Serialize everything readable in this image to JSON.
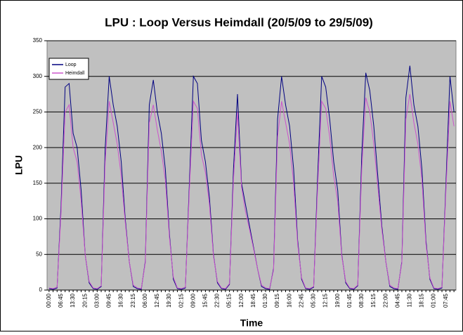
{
  "chart_data": {
    "type": "line",
    "title": "LPU : Loop Versus Heimdall (20/5/09 to 29/5/09)",
    "x_label": "Time",
    "y_label": "LPU",
    "categories": [
      "00:00",
      null,
      null,
      "06:45",
      null,
      null,
      "13:30",
      null,
      null,
      "20:15",
      null,
      null,
      "03:00",
      null,
      null,
      "09:45",
      null,
      null,
      "16:30",
      null,
      null,
      "23:15",
      null,
      null,
      "06:00",
      null,
      null,
      "12:45",
      null,
      null,
      "19:30",
      null,
      null,
      "02:15",
      null,
      null,
      "09:00",
      null,
      null,
      "15:45",
      null,
      null,
      "22:30",
      null,
      null,
      "05:15",
      null,
      null,
      "12:00",
      null,
      null,
      "18:45",
      null,
      null,
      "01:30",
      null,
      null,
      "09:15",
      null,
      null,
      "16:00",
      null,
      null,
      "22:45",
      null,
      null,
      "05:30",
      null,
      null,
      "12:15",
      null,
      null,
      "19:00",
      null,
      null,
      "01:45",
      null,
      null,
      "08:30",
      null,
      null,
      "15:15",
      null,
      null,
      "22:00",
      null,
      null,
      "04:45",
      null,
      null,
      "11:30",
      null,
      null,
      "18:15",
      null,
      null,
      "01:00",
      null,
      null,
      "07:45",
      null,
      null
    ],
    "series": [
      {
        "name": "Loop",
        "color": "#000080",
        "values": [
          2,
          1,
          3,
          120,
          285,
          290,
          220,
          200,
          140,
          50,
          10,
          2,
          1,
          5,
          200,
          300,
          260,
          230,
          180,
          100,
          40,
          5,
          2,
          1,
          40,
          260,
          295,
          250,
          220,
          170,
          80,
          15,
          2,
          1,
          3,
          150,
          300,
          290,
          210,
          180,
          130,
          50,
          10,
          2,
          1,
          8,
          170,
          275,
          150,
          120,
          90,
          60,
          30,
          5,
          2,
          1,
          30,
          240,
          300,
          260,
          230,
          170,
          70,
          15,
          2,
          1,
          4,
          160,
          300,
          285,
          240,
          180,
          140,
          50,
          10,
          2,
          1,
          6,
          190,
          305,
          280,
          230,
          160,
          90,
          40,
          5,
          2,
          1,
          40,
          270,
          315,
          260,
          230,
          170,
          70,
          15,
          2,
          1,
          3,
          150,
          300,
          250
        ]
      },
      {
        "name": "Heimdall",
        "color": "#cc55cc",
        "values": [
          3,
          2,
          4,
          110,
          250,
          260,
          200,
          180,
          125,
          50,
          12,
          3,
          2,
          6,
          180,
          265,
          235,
          205,
          160,
          95,
          40,
          7,
          3,
          2,
          38,
          235,
          260,
          225,
          195,
          155,
          75,
          18,
          3,
          2,
          4,
          140,
          265,
          255,
          190,
          165,
          120,
          48,
          12,
          3,
          2,
          9,
          155,
          250,
          145,
          110,
          85,
          58,
          30,
          7,
          3,
          2,
          28,
          215,
          265,
          235,
          205,
          150,
          65,
          17,
          3,
          2,
          5,
          145,
          265,
          255,
          215,
          160,
          125,
          48,
          12,
          3,
          2,
          7,
          170,
          270,
          250,
          205,
          145,
          85,
          40,
          7,
          3,
          2,
          38,
          240,
          275,
          235,
          205,
          155,
          65,
          17,
          3,
          2,
          4,
          140,
          265,
          230
        ]
      }
    ],
    "ylim": [
      0,
      350
    ],
    "yticks": [
      0,
      50,
      100,
      150,
      200,
      250,
      300,
      350
    ],
    "grid": true,
    "legend": "top-left"
  }
}
